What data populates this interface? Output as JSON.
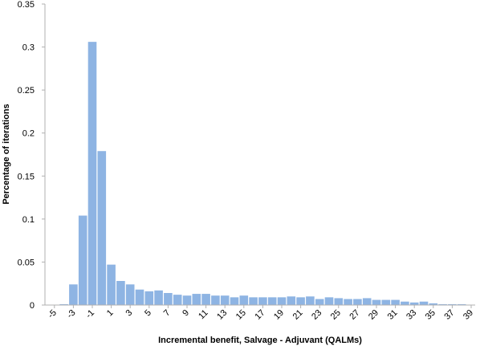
{
  "chart_data": {
    "type": "bar",
    "title": "",
    "xlabel": "Incremental benefit, Salvage - Adjuvant (QALMs)",
    "ylabel": "Percentage of iterations",
    "ylim": [
      0,
      0.35
    ],
    "y_ticks": [
      "0",
      "0.05",
      "0.1",
      "0.15",
      "0.2",
      "0.25",
      "0.3",
      "0.35"
    ],
    "x_ticks": [
      "-5",
      "-3",
      "-1",
      "1",
      "3",
      "5",
      "7",
      "9",
      "11",
      "13",
      "15",
      "17",
      "19",
      "21",
      "23",
      "25",
      "27",
      "29",
      "31",
      "33",
      "35",
      "37",
      "39"
    ],
    "grid": false,
    "legend": "none",
    "bar_color": "#8EB4E3",
    "x": [
      -5,
      -4,
      -3,
      -2,
      -1,
      0,
      1,
      2,
      3,
      4,
      5,
      6,
      7,
      8,
      9,
      10,
      11,
      12,
      13,
      14,
      15,
      16,
      17,
      18,
      19,
      20,
      21,
      22,
      23,
      24,
      25,
      26,
      27,
      28,
      29,
      30,
      31,
      32,
      33,
      34,
      35,
      36,
      37,
      38,
      39,
      40
    ],
    "values": [
      0.0,
      0.001,
      0.024,
      0.104,
      0.306,
      0.179,
      0.047,
      0.028,
      0.024,
      0.018,
      0.016,
      0.017,
      0.014,
      0.012,
      0.011,
      0.013,
      0.013,
      0.011,
      0.011,
      0.009,
      0.011,
      0.009,
      0.009,
      0.009,
      0.009,
      0.01,
      0.009,
      0.01,
      0.007,
      0.009,
      0.008,
      0.007,
      0.007,
      0.008,
      0.006,
      0.006,
      0.006,
      0.004,
      0.003,
      0.004,
      0.002,
      0.001,
      0.001,
      0.001,
      0.0,
      0.0
    ]
  }
}
